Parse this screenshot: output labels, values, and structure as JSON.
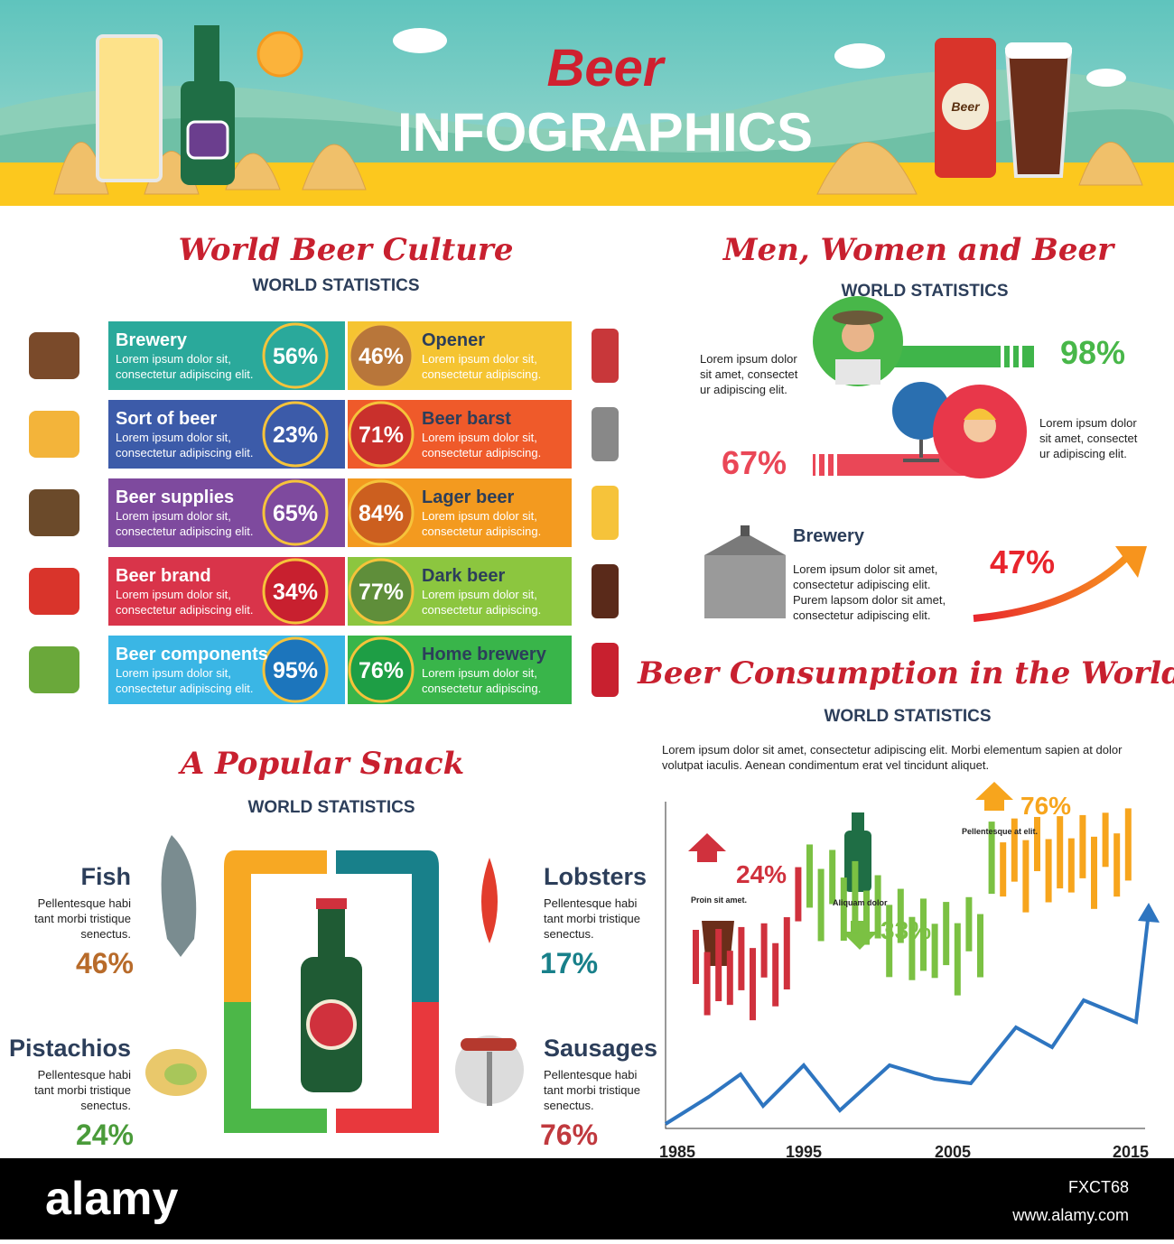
{
  "header": {
    "title": "Beer",
    "subtitle": "INFOGRAPHICS"
  },
  "culture": {
    "title": "World Beer Culture",
    "subtitle": "WORLD STATISTICS",
    "left": [
      {
        "name": "Brewery",
        "text": [
          "Lorem ipsum dolor sit,",
          "consectetur adipiscing elit."
        ],
        "value": "56%"
      },
      {
        "name": "Sort of beer",
        "text": [
          "Lorem ipsum dolor sit,",
          "consectetur adipiscing elit."
        ],
        "value": "23%"
      },
      {
        "name": "Beer supplies",
        "text": [
          "Lorem ipsum dolor sit,",
          "consectetur adipiscing elit."
        ],
        "value": "65%"
      },
      {
        "name": "Beer brand",
        "text": [
          "Lorem ipsum dolor sit,",
          "consectetur adipiscing elit."
        ],
        "value": "34%"
      },
      {
        "name": "Beer components",
        "text": [
          "Lorem ipsum dolor sit,",
          "consectetur adipiscing elit."
        ],
        "value": "95%"
      }
    ],
    "right": [
      {
        "name": "Opener",
        "text": [
          "Lorem ipsum dolor sit,",
          "consectetur adipiscing."
        ],
        "value": "46%"
      },
      {
        "name": "Beer barst",
        "text": [
          "Lorem ipsum dolor sit,",
          "consectetur adipiscing."
        ],
        "value": "71%"
      },
      {
        "name": "Lager beer",
        "text": [
          "Lorem ipsum dolor sit,",
          "consectetur adipiscing."
        ],
        "value": "84%"
      },
      {
        "name": "Dark beer",
        "text": [
          "Lorem ipsum dolor sit,",
          "consectetur adipiscing."
        ],
        "value": "77%"
      },
      {
        "name": "Home brewery",
        "text": [
          "Lorem ipsum dolor sit,",
          "consectetur adipiscing."
        ],
        "value": "76%"
      }
    ]
  },
  "gender": {
    "title": "Men, Women and Beer",
    "subtitle": "WORLD STATISTICS",
    "men": {
      "text": [
        "Lorem ipsum dolor",
        "sit amet, consectet",
        "ur adipiscing elit."
      ],
      "value": "98%"
    },
    "women": {
      "text": [
        "Lorem ipsum dolor",
        "sit amet, consectet",
        "ur adipiscing elit."
      ],
      "value": "67%"
    },
    "brewery": {
      "name": "Brewery",
      "text": [
        "Lorem ipsum dolor sit amet,",
        "consectetur adipiscing elit.",
        "Purem lapsom dolor sit amet,",
        "consectetur adipiscing elit."
      ],
      "value": "47%"
    }
  },
  "consumption": {
    "title": "Beer Consumption in the World",
    "subtitle": "WORLD STATISTICS",
    "text": [
      "Lorem ipsum dolor sit amet, consectetur adipiscing elit. Morbi elementum sapien at dolor",
      "volutpat iaculis. Aenean condimentum erat vel tincidunt aliquet."
    ],
    "years": [
      "1985",
      "1995",
      "2005",
      "2015"
    ],
    "notes": [
      {
        "value": "24%",
        "label": "Proin sit amet."
      },
      {
        "value": "33%",
        "label": "Aliquam dolor"
      },
      {
        "value": "76%",
        "label": "Pellentesque at elit."
      }
    ]
  },
  "snack": {
    "title": "A Popular Snack",
    "subtitle": "WORLD STATISTICS",
    "items": [
      {
        "name": "Fish",
        "text": [
          "Pellentesque habi",
          "tant morbi tristique",
          "senectus."
        ],
        "value": "46%"
      },
      {
        "name": "Lobsters",
        "text": [
          "Pellentesque habi",
          "tant morbi tristique",
          "senectus."
        ],
        "value": "17%"
      },
      {
        "name": "Pistachios",
        "text": [
          "Pellentesque habi",
          "tant morbi tristique",
          "senectus."
        ],
        "value": "24%"
      },
      {
        "name": "Sausages",
        "text": [
          "Pellentesque habi",
          "tant morbi tristique",
          "senectus."
        ],
        "value": "76%"
      }
    ]
  },
  "footer": {
    "brand": "alamy",
    "id": "FXCT68",
    "url": "www.alamy.com"
  }
}
